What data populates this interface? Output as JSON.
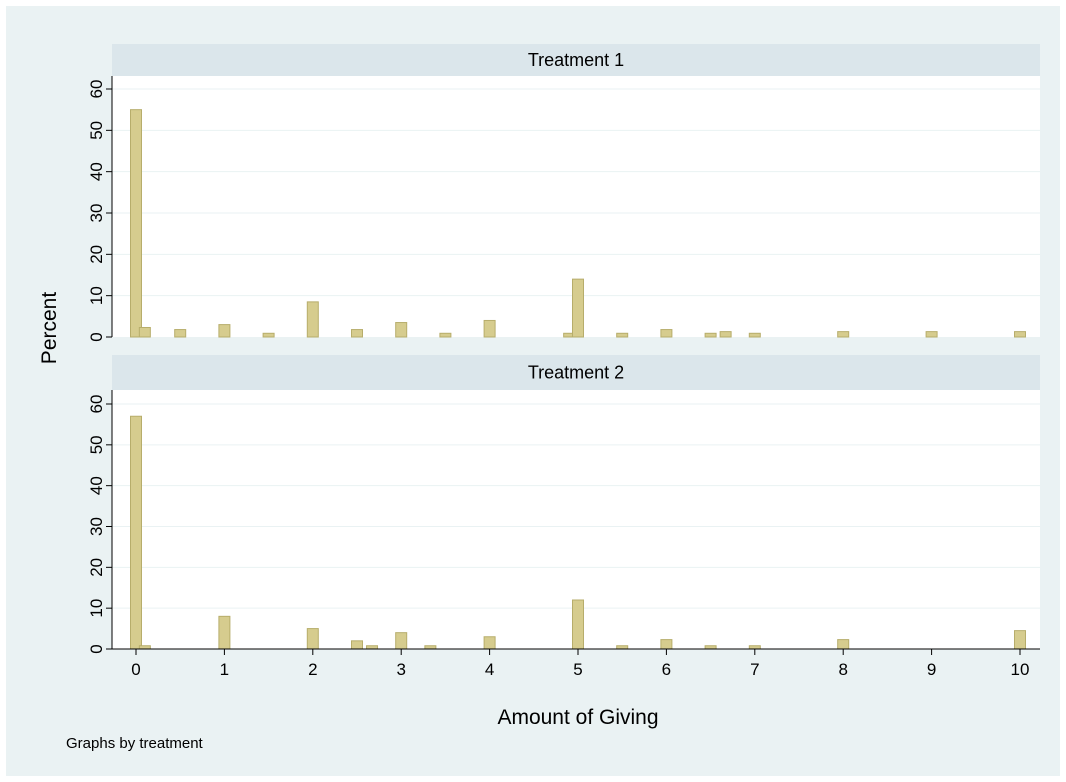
{
  "chart_data": {
    "type": "bar",
    "ylabel": "Percent",
    "xlabel": "Amount of Giving",
    "note": "Graphs by treatment",
    "xlim": [
      -0.2,
      10.2
    ],
    "ylim": [
      0,
      60
    ],
    "x_ticks": [
      "0",
      "1",
      "2",
      "3",
      "4",
      "5",
      "6",
      "7",
      "8",
      "9",
      "10"
    ],
    "y_ticks": [
      "0",
      "10",
      "20",
      "30",
      "40",
      "50",
      "60"
    ],
    "grid": true,
    "colors": {
      "bar": "#d6cc8e",
      "bar_edge": "#b7ad6b",
      "background": "#eaf2f3",
      "plot_area": "#ffffff",
      "strip": "#dbe6eb",
      "grid": "#eaf2f3"
    },
    "panels": [
      {
        "title": "Treatment 1",
        "bars": [
          {
            "x": 0,
            "y": 55
          },
          {
            "x": 0.1,
            "y": 2.3
          },
          {
            "x": 0.5,
            "y": 1.8
          },
          {
            "x": 1,
            "y": 3
          },
          {
            "x": 1.5,
            "y": 0.9
          },
          {
            "x": 2,
            "y": 8.5
          },
          {
            "x": 2.5,
            "y": 1.8
          },
          {
            "x": 3,
            "y": 3.5
          },
          {
            "x": 3.5,
            "y": 0.9
          },
          {
            "x": 4,
            "y": 4
          },
          {
            "x": 4.9,
            "y": 0.9
          },
          {
            "x": 5,
            "y": 14
          },
          {
            "x": 5.5,
            "y": 0.9
          },
          {
            "x": 6,
            "y": 1.8
          },
          {
            "x": 6.5,
            "y": 0.9
          },
          {
            "x": 6.67,
            "y": 1.3
          },
          {
            "x": 7,
            "y": 0.9
          },
          {
            "x": 8,
            "y": 1.3
          },
          {
            "x": 9,
            "y": 1.3
          },
          {
            "x": 10,
            "y": 1.3
          }
        ]
      },
      {
        "title": "Treatment 2",
        "bars": [
          {
            "x": 0,
            "y": 57
          },
          {
            "x": 0.1,
            "y": 0.8
          },
          {
            "x": 1,
            "y": 8
          },
          {
            "x": 2,
            "y": 5
          },
          {
            "x": 2.5,
            "y": 2
          },
          {
            "x": 2.67,
            "y": 0.8
          },
          {
            "x": 3,
            "y": 4
          },
          {
            "x": 3.33,
            "y": 0.8
          },
          {
            "x": 4,
            "y": 3
          },
          {
            "x": 5,
            "y": 12
          },
          {
            "x": 5.5,
            "y": 0.8
          },
          {
            "x": 6,
            "y": 2.3
          },
          {
            "x": 6.5,
            "y": 0.8
          },
          {
            "x": 7,
            "y": 0.8
          },
          {
            "x": 8,
            "y": 2.3
          },
          {
            "x": 10,
            "y": 4.5
          }
        ]
      }
    ]
  }
}
